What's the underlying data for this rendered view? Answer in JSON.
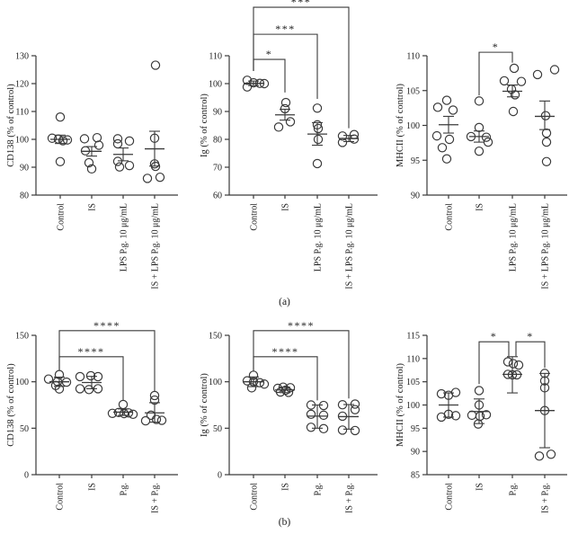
{
  "figure": {
    "panel_a_label": "(a)",
    "panel_b_label": "(b)"
  },
  "colors": {
    "line": "#3a3a3a",
    "text": "#1a1a1a",
    "background": "#ffffff"
  },
  "chart_data": [
    {
      "id": "cd138-panel-a",
      "panel": "a",
      "type": "scatter",
      "ylabel": "CD138 (% of control)",
      "ylim": [
        80,
        130
      ],
      "yticks": [
        80,
        90,
        100,
        110,
        120,
        130
      ],
      "categories": [
        "Control",
        "IS",
        "LPS P.g. 10 μg/mL",
        "IS + LPS P.g. 10 μg/mL"
      ],
      "groups": [
        {
          "mean": 100.0,
          "err": [
            98.5,
            101.5
          ],
          "points": [
            [
              0,
              108
            ],
            [
              -9,
              100.4
            ],
            [
              -2,
              100.1
            ],
            [
              8,
              99.8
            ],
            [
              3,
              99.5
            ],
            [
              0,
              92
            ]
          ]
        },
        {
          "mean": 95.7,
          "err": [
            94.0,
            97.4
          ],
          "points": [
            [
              -8,
              100.2
            ],
            [
              6,
              100.6
            ],
            [
              8,
              97.9
            ],
            [
              -7,
              95.9
            ],
            [
              -3,
              91.6
            ],
            [
              0,
              89.4
            ]
          ]
        },
        {
          "mean": 94.6,
          "err": [
            92.3,
            96.9
          ],
          "points": [
            [
              -6,
              100.2
            ],
            [
              7,
              99.4
            ],
            [
              -6,
              98.4
            ],
            [
              -6,
              92.1
            ],
            [
              -4,
              90.1
            ],
            [
              7,
              90.6
            ]
          ]
        },
        {
          "mean": 96.6,
          "err": [
            90.4,
            102.9
          ],
          "points": [
            [
              1,
              126.6
            ],
            [
              0,
              100.4
            ],
            [
              0,
              91.2
            ],
            [
              1,
              90.3
            ],
            [
              -8,
              86
            ],
            [
              6,
              86.4
            ]
          ]
        }
      ],
      "significance": []
    },
    {
      "id": "ig-panel-a",
      "panel": "a",
      "type": "scatter",
      "ylabel": "Ig (% of control)",
      "ylim": [
        60,
        110
      ],
      "yticks": [
        60,
        70,
        80,
        90,
        100,
        110
      ],
      "categories": [
        "Control",
        "IS",
        "LPS P.g. 10 μg/mL",
        "IS + LPS P.g. 10 μg/mL"
      ],
      "groups": [
        {
          "mean": 100.1,
          "err": [
            99.3,
            100.9
          ],
          "points": [
            [
              -7,
              101.2
            ],
            [
              0,
              100.3
            ],
            [
              7,
              100.1
            ],
            [
              12,
              100
            ],
            [
              -7,
              98.8
            ]
          ]
        },
        {
          "mean": 88.8,
          "err": [
            86.9,
            90.8
          ],
          "points": [
            [
              1,
              93.2
            ],
            [
              0,
              91
            ],
            [
              6,
              86.3
            ],
            [
              -7,
              84.4
            ]
          ]
        },
        {
          "mean": 81.9,
          "err": [
            77.9,
            86.0
          ],
          "points": [
            [
              0,
              91.2
            ],
            [
              0,
              85.2
            ],
            [
              1,
              83.9
            ],
            [
              1,
              80
            ],
            [
              0,
              71.3
            ]
          ]
        },
        {
          "mean": 80.3,
          "err": [
            79.2,
            81.4
          ],
          "points": [
            [
              -7,
              81.2
            ],
            [
              6,
              81.7
            ],
            [
              6,
              80.1
            ],
            [
              -7,
              78.9
            ]
          ]
        }
      ],
      "significance": [
        {
          "from": 0,
          "to": 1,
          "label": "*",
          "y": 108.7,
          "drop_from": 104.5,
          "drop_to": 96.8
        },
        {
          "from": 0,
          "to": 2,
          "label": "***",
          "y": 117.7,
          "drop_from": 104.5,
          "drop_to": 94.5
        },
        {
          "from": 0,
          "to": 3,
          "label": "***",
          "y": 127.4,
          "drop_from": 104.5,
          "drop_to": 84.0
        }
      ]
    },
    {
      "id": "mhcii-panel-a",
      "panel": "a",
      "type": "scatter",
      "ylabel": "MHCII (% of control)",
      "ylim": [
        90,
        110
      ],
      "yticks": [
        90,
        95,
        100,
        105,
        110
      ],
      "categories": [
        "Control",
        "IS",
        "LPS P.g. 10 μg/mL",
        "IS + LPS P.g. 10 μg/mL"
      ],
      "groups": [
        {
          "mean": 100.1,
          "err": [
            98.9,
            101.3
          ],
          "points": [
            [
              -2,
              103.6
            ],
            [
              -12,
              102.6
            ],
            [
              5,
              102.2
            ],
            [
              -13,
              98.5
            ],
            [
              1,
              98
            ],
            [
              -7,
              96.8
            ],
            [
              -2,
              95.2
            ]
          ]
        },
        {
          "mean": 98.4,
          "err": [
            97.6,
            99.2
          ],
          "points": [
            [
              0,
              103.5
            ],
            [
              0,
              99.7
            ],
            [
              -9,
              98.4
            ],
            [
              8,
              98.3
            ],
            [
              10,
              97.6
            ],
            [
              0,
              96.3
            ]
          ]
        },
        {
          "mean": 104.9,
          "err": [
            104.1,
            105.8
          ],
          "points": [
            [
              2,
              108.2
            ],
            [
              -9,
              106.4
            ],
            [
              10,
              106.3
            ],
            [
              -1,
              105.2
            ],
            [
              3,
              104.4
            ],
            [
              1,
              102
            ]
          ]
        },
        {
          "mean": 101.3,
          "err": [
            99.4,
            103.5
          ],
          "points": [
            [
              -8,
              107.3
            ],
            [
              11,
              108
            ],
            [
              1,
              101.4
            ],
            [
              2,
              98.9
            ],
            [
              2,
              97.6
            ],
            [
              2,
              94.8
            ]
          ]
        }
      ],
      "significance": [
        {
          "from": 1,
          "to": 2,
          "label": "*",
          "y": 110.5,
          "drop_from": 104.3,
          "drop_to": 109.0
        }
      ]
    },
    {
      "id": "cd138-panel-b",
      "panel": "b",
      "type": "scatter",
      "ylabel": "CD138 (% of control)",
      "ylim": [
        0,
        150
      ],
      "yticks": [
        0,
        50,
        100,
        150
      ],
      "categories": [
        "Control",
        "IS",
        "P.g.",
        "IS + P.g."
      ],
      "groups": [
        {
          "mean": 100.0,
          "err": [
            95.0,
            105.0
          ],
          "points": [
            [
              0,
              107.7
            ],
            [
              -12,
              102.9
            ],
            [
              -2,
              100.2
            ],
            [
              8,
              99.6
            ],
            [
              -4,
              96
            ],
            [
              0,
              92.3
            ]
          ]
        },
        {
          "mean": 99.2,
          "err": [
            92.5,
            105.8
          ],
          "points": [
            [
              -13,
              105.5
            ],
            [
              -1,
              106.5
            ],
            [
              7,
              105.5
            ],
            [
              -13,
              92.5
            ],
            [
              -3,
              91.6
            ],
            [
              7,
              92.5
            ]
          ]
        },
        {
          "mean": 67.3,
          "err": [
            63.8,
            70.8
          ],
          "points": [
            [
              0,
              75.5
            ],
            [
              -12,
              66
            ],
            [
              -5,
              67
            ],
            [
              1,
              65.8
            ],
            [
              6,
              66.5
            ],
            [
              11,
              65
            ]
          ]
        },
        {
          "mean": 66.5,
          "err": [
            56.5,
            77.5
          ],
          "points": [
            [
              0,
              85.2
            ],
            [
              0,
              80.3
            ],
            [
              -4,
              64
            ],
            [
              -10,
              58
            ],
            [
              2,
              59.5
            ],
            [
              8,
              58.5
            ]
          ]
        }
      ],
      "significance": [
        {
          "from": 0,
          "to": 2,
          "label": "****",
          "y": 127.0,
          "drop_from": 112.0,
          "drop_to": 80.0
        },
        {
          "from": 0,
          "to": 3,
          "label": "****",
          "y": 155.0,
          "drop_from": 112.0,
          "drop_to": 90.0
        }
      ]
    },
    {
      "id": "ig-panel-b",
      "panel": "b",
      "type": "scatter",
      "ylabel": "Ig (% of control)",
      "ylim": [
        0,
        150
      ],
      "yticks": [
        0,
        50,
        100,
        150
      ],
      "categories": [
        "Control",
        "IS",
        "P.g.",
        "IS + P.g."
      ],
      "groups": [
        {
          "mean": 100.0,
          "err": [
            94.8,
            105.2
          ],
          "points": [
            [
              0,
              107
            ],
            [
              -7,
              101
            ],
            [
              0,
              100
            ],
            [
              7,
              99
            ],
            [
              12,
              97.5
            ],
            [
              -2,
              93.5
            ]
          ]
        },
        {
          "mean": 91.2,
          "err": [
            88.3,
            94.1
          ],
          "points": [
            [
              -2,
              94.2
            ],
            [
              6,
              93.6
            ],
            [
              -8,
              92.9
            ],
            [
              1,
              91
            ],
            [
              -5,
              89
            ],
            [
              4,
              88.6
            ]
          ]
        },
        {
          "mean": 63.0,
          "err": [
            50.0,
            75.0
          ],
          "points": [
            [
              -7,
              75
            ],
            [
              7,
              74.5
            ],
            [
              -7,
              65
            ],
            [
              7,
              64
            ],
            [
              -7,
              51
            ],
            [
              7,
              49.5
            ]
          ]
        },
        {
          "mean": 62.5,
          "err": [
            49.0,
            75.5
          ],
          "points": [
            [
              7,
              76
            ],
            [
              -7,
              75.3
            ],
            [
              7,
              70
            ],
            [
              -7,
              63
            ],
            [
              -7,
              48
            ],
            [
              7,
              47.5
            ]
          ]
        }
      ],
      "significance": [
        {
          "from": 0,
          "to": 2,
          "label": "****",
          "y": 127.0,
          "drop_from": 111.0,
          "drop_to": 80.0
        },
        {
          "from": 0,
          "to": 3,
          "label": "****",
          "y": 155.0,
          "drop_from": 111.0,
          "drop_to": 82.0
        }
      ]
    },
    {
      "id": "mhcii-panel-b",
      "panel": "b",
      "type": "scatter",
      "ylabel": "MHCII (% of control)",
      "ylim": [
        85,
        115
      ],
      "yticks": [
        85,
        90,
        95,
        100,
        105,
        110,
        115
      ],
      "categories": [
        "Control",
        "IS",
        "P.g.",
        "IS + P.g."
      ],
      "groups": [
        {
          "mean": 100.0,
          "err": [
            97.4,
            102.6
          ],
          "points": [
            [
              -8,
              102.4
            ],
            [
              0,
              102.1
            ],
            [
              8,
              102.7
            ],
            [
              -8,
              97.4
            ],
            [
              0,
              98
            ],
            [
              8,
              97.7
            ]
          ]
        },
        {
          "mean": 98.6,
          "err": [
            96.0,
            101.3
          ],
          "points": [
            [
              0,
              103.1
            ],
            [
              0,
              100
            ],
            [
              -8,
              97.8
            ],
            [
              1,
              97.6
            ],
            [
              8,
              97.9
            ],
            [
              -1,
              95.9
            ]
          ]
        },
        {
          "mean": 106.6,
          "err": [
            102.6,
            110.4
          ],
          "points": [
            [
              -5,
              109.3
            ],
            [
              1,
              108.9
            ],
            [
              7,
              108.6
            ],
            [
              -5,
              106.6
            ],
            [
              0,
              106.5
            ],
            [
              5,
              106.5
            ]
          ]
        },
        {
          "mean": 98.8,
          "err": [
            90.8,
            106.8
          ],
          "points": [
            [
              0,
              106.8
            ],
            [
              0,
              105.2
            ],
            [
              0,
              103.7
            ],
            [
              0,
              98.8
            ],
            [
              -6,
              89
            ],
            [
              7,
              89.4
            ]
          ]
        }
      ],
      "significance": [
        {
          "from": 1,
          "to": 2,
          "label": "*",
          "y": 113.6,
          "drop_from": 104.5,
          "drop_to": 110.5,
          "to_dx": -4
        },
        {
          "from": 2,
          "to": 3,
          "label": "*",
          "y": 113.6,
          "drop_from": 110.5,
          "drop_to": 108.0,
          "from_dx": 4
        }
      ]
    }
  ]
}
